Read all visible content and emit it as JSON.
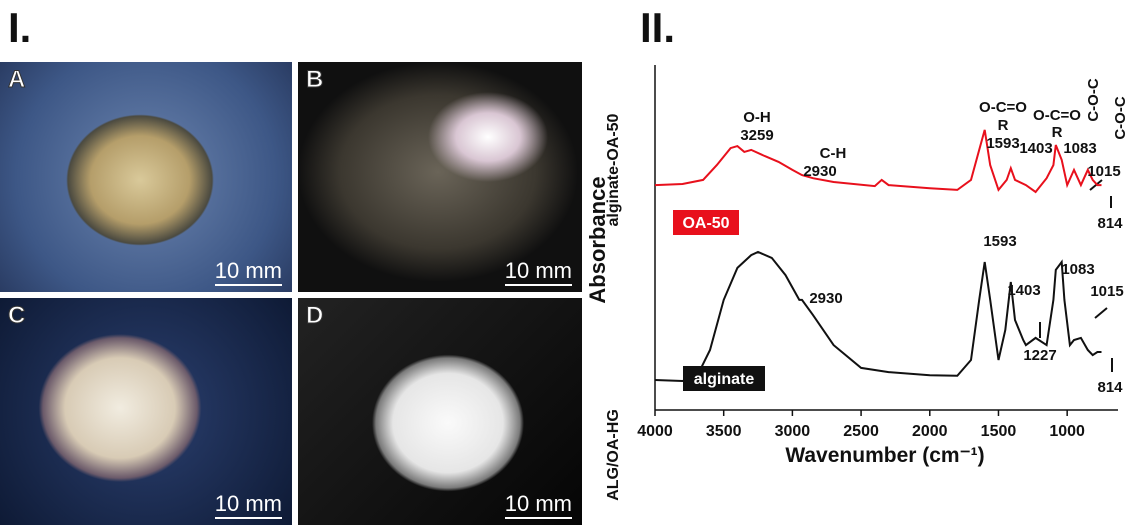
{
  "figure_labels": [
    "I.",
    "II."
  ],
  "photos": [
    {
      "letter": "A",
      "scale_bar": "10 mm"
    },
    {
      "letter": "B",
      "scale_bar": "10 mm"
    },
    {
      "letter": "C",
      "scale_bar": "10 mm"
    },
    {
      "letter": "D",
      "scale_bar": "10 mm"
    }
  ],
  "chart_data": {
    "type": "line",
    "xlabel": "Wavenumber (cm⁻¹)",
    "ylabel": "Absorbance",
    "side_labels": [
      "alginate-OA-50",
      "ALG/OA-HG"
    ],
    "xlim": [
      4000,
      630
    ],
    "xticks": [
      4000,
      3500,
      3000,
      2500,
      2000,
      1500,
      1000
    ],
    "ylim": [
      0,
      100
    ],
    "series": [
      {
        "name": "OA-50",
        "color": "#e8101c",
        "x": [
          4000,
          3800,
          3650,
          3550,
          3450,
          3400,
          3350,
          3300,
          3200,
          3100,
          3000,
          2930,
          2850,
          2700,
          2400,
          2350,
          2300,
          2000,
          1800,
          1700,
          1640,
          1600,
          1560,
          1500,
          1440,
          1410,
          1380,
          1300,
          1230,
          1150,
          1100,
          1083,
          1040,
          1000,
          950,
          900,
          850,
          814,
          780,
          750
        ],
        "values": [
          65.2,
          65.5,
          66.7,
          71.0,
          75.9,
          76.5,
          74.8,
          75.4,
          73.6,
          71.9,
          69.6,
          68.1,
          67.2,
          66.1,
          64.9,
          66.7,
          65.2,
          64.3,
          63.8,
          66.7,
          75.4,
          81.2,
          71.0,
          63.8,
          66.7,
          70.1,
          66.7,
          65.2,
          63.2,
          67.2,
          71.0,
          76.8,
          72.5,
          65.2,
          69.6,
          65.2,
          69.6,
          66.7,
          65.2,
          65.2
        ]
      },
      {
        "name": "alginate",
        "color": "#111111",
        "x": [
          4000,
          3800,
          3700,
          3600,
          3500,
          3400,
          3300,
          3250,
          3150,
          3050,
          2950,
          2930,
          2850,
          2700,
          2500,
          2300,
          2000,
          1800,
          1700,
          1640,
          1600,
          1560,
          1500,
          1450,
          1410,
          1380,
          1320,
          1300,
          1230,
          1150,
          1100,
          1083,
          1040,
          1020,
          980,
          950,
          900,
          850,
          814,
          780,
          750
        ],
        "values": [
          8.7,
          8.4,
          9.3,
          17.4,
          31.9,
          41.2,
          44.9,
          45.8,
          44.1,
          39.1,
          31.9,
          31.9,
          27.5,
          18.8,
          12.2,
          11.0,
          10.1,
          9.9,
          14.5,
          31.9,
          42.9,
          31.9,
          14.5,
          23.2,
          37.1,
          26.1,
          20.3,
          18.8,
          20.9,
          18.8,
          31.9,
          40.6,
          42.9,
          31.9,
          18.8,
          20.3,
          20.9,
          17.4,
          15.9,
          16.8,
          16.8
        ]
      }
    ],
    "annotations": [
      "O-H",
      "3259",
      "C-H",
      "2930",
      "O-C=O",
      "R",
      "1593",
      "O-C=O",
      "R",
      "1403",
      "1083",
      "C-O-C",
      "C-O-C",
      "1015",
      "814",
      "1593",
      "1403",
      "1083",
      "2930",
      "1227",
      "1015",
      "814"
    ]
  }
}
